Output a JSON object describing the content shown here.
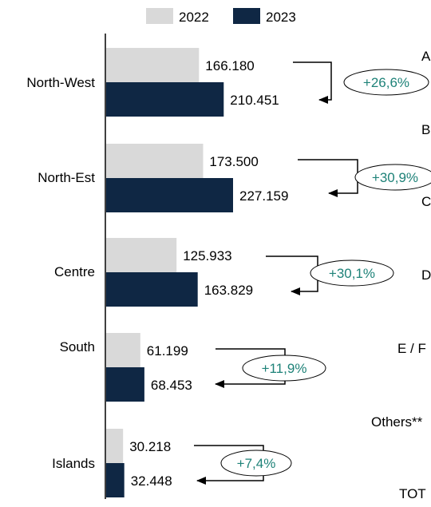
{
  "chart_data": {
    "type": "bar",
    "orientation": "horizontal",
    "categories": [
      "North-West",
      "North-Est",
      "Centre",
      "South",
      "Islands"
    ],
    "series": [
      {
        "name": "2022",
        "color": "#d9d9d9",
        "values": [
          166180,
          173500,
          125933,
          61199,
          30218
        ],
        "labels": [
          "166.180",
          "173.500",
          "125.933",
          "61.199",
          "30.218"
        ]
      },
      {
        "name": "2023",
        "color": "#0f2744",
        "values": [
          210451,
          227159,
          163829,
          68453,
          32448
        ],
        "labels": [
          "210.451",
          "227.159",
          "163.829",
          "68.453",
          "32.448"
        ]
      }
    ],
    "changes": [
      "+26,6%",
      "+30,9%",
      "+30,1%",
      "+11,9%",
      "+7,4%"
    ],
    "change_color": "#1e8278",
    "xlim": [
      0,
      280000
    ],
    "legend_position": "top",
    "grid": false
  },
  "right_fragments": [
    "A",
    "B",
    "C",
    "D",
    "E / F",
    "Others**",
    "TOT"
  ]
}
